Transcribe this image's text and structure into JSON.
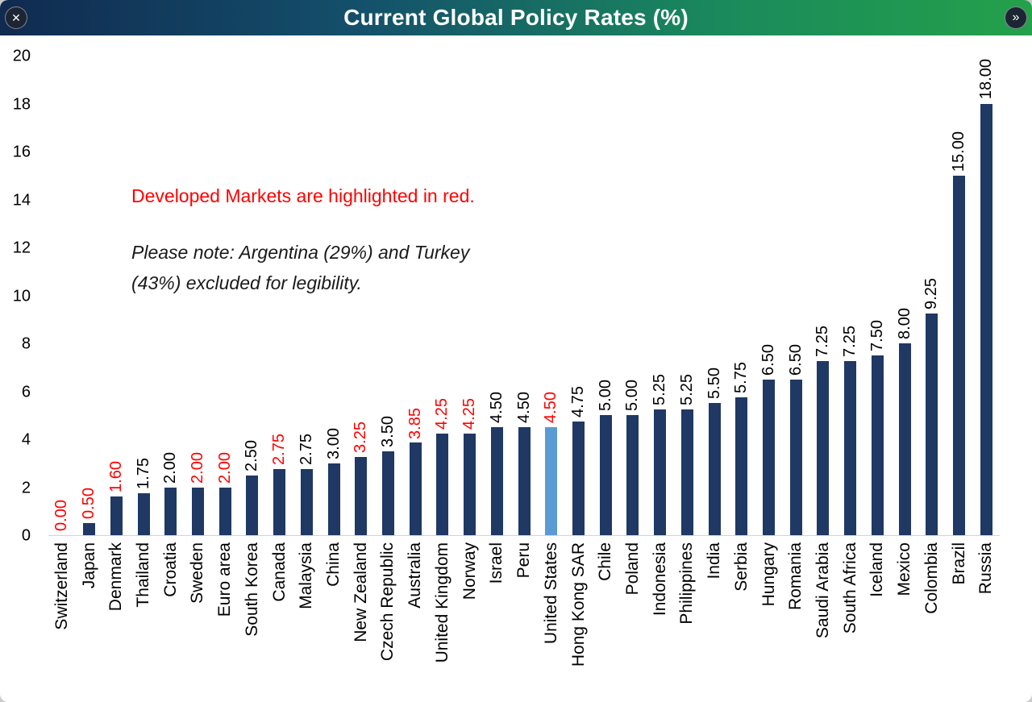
{
  "header": {
    "title": "Current Global Policy Rates (%)",
    "close_icon": "✕",
    "next_icon": "»"
  },
  "annotations": {
    "developed_note": "Developed Markets are highlighted in red.",
    "exclusion_note_line1": "Please note: Argentina (29%) and Turkey",
    "exclusion_note_line2": "(43%) excluded for legibility."
  },
  "chart_data": {
    "type": "bar",
    "title": "Current Global Policy Rates (%)",
    "xlabel": "",
    "ylabel": "",
    "ylim": [
      0,
      20
    ],
    "ytick_step": 2,
    "grid": false,
    "legend": "none",
    "bar_color": "#1F3864",
    "highlight_color": "#5B9BD5",
    "developed_label_color": "#FF0000",
    "default_label_color": "#000000",
    "bars": [
      {
        "country": "Switzerland",
        "rate": 0.0,
        "label": "0.00",
        "developed": true,
        "highlight": false
      },
      {
        "country": "Japan",
        "rate": 0.5,
        "label": "0.50",
        "developed": true,
        "highlight": false
      },
      {
        "country": "Denmark",
        "rate": 1.6,
        "label": "1.60",
        "developed": true,
        "highlight": false
      },
      {
        "country": "Thailand",
        "rate": 1.75,
        "label": "1.75",
        "developed": false,
        "highlight": false
      },
      {
        "country": "Croatia",
        "rate": 2.0,
        "label": "2.00",
        "developed": false,
        "highlight": false
      },
      {
        "country": "Sweden",
        "rate": 2.0,
        "label": "2.00",
        "developed": true,
        "highlight": false
      },
      {
        "country": "Euro area",
        "rate": 2.0,
        "label": "2.00",
        "developed": true,
        "highlight": false
      },
      {
        "country": "South Korea",
        "rate": 2.5,
        "label": "2.50",
        "developed": false,
        "highlight": false
      },
      {
        "country": "Canada",
        "rate": 2.75,
        "label": "2.75",
        "developed": true,
        "highlight": false
      },
      {
        "country": "Malaysia",
        "rate": 2.75,
        "label": "2.75",
        "developed": false,
        "highlight": false
      },
      {
        "country": "China",
        "rate": 3.0,
        "label": "3.00",
        "developed": false,
        "highlight": false
      },
      {
        "country": "New Zealand",
        "rate": 3.25,
        "label": "3.25",
        "developed": true,
        "highlight": false
      },
      {
        "country": "Czech Republic",
        "rate": 3.5,
        "label": "3.50",
        "developed": false,
        "highlight": false
      },
      {
        "country": "Australia",
        "rate": 3.85,
        "label": "3.85",
        "developed": true,
        "highlight": false
      },
      {
        "country": "United Kingdom",
        "rate": 4.25,
        "label": "4.25",
        "developed": true,
        "highlight": false
      },
      {
        "country": "Norway",
        "rate": 4.25,
        "label": "4.25",
        "developed": true,
        "highlight": false
      },
      {
        "country": "Israel",
        "rate": 4.5,
        "label": "4.50",
        "developed": false,
        "highlight": false
      },
      {
        "country": "Peru",
        "rate": 4.5,
        "label": "4.50",
        "developed": false,
        "highlight": false
      },
      {
        "country": "United States",
        "rate": 4.5,
        "label": "4.50",
        "developed": true,
        "highlight": true
      },
      {
        "country": "Hong Kong SAR",
        "rate": 4.75,
        "label": "4.75",
        "developed": false,
        "highlight": false
      },
      {
        "country": "Chile",
        "rate": 5.0,
        "label": "5.00",
        "developed": false,
        "highlight": false
      },
      {
        "country": "Poland",
        "rate": 5.0,
        "label": "5.00",
        "developed": false,
        "highlight": false
      },
      {
        "country": "Indonesia",
        "rate": 5.25,
        "label": "5.25",
        "developed": false,
        "highlight": false
      },
      {
        "country": "Philippines",
        "rate": 5.25,
        "label": "5.25",
        "developed": false,
        "highlight": false
      },
      {
        "country": "India",
        "rate": 5.5,
        "label": "5.50",
        "developed": false,
        "highlight": false
      },
      {
        "country": "Serbia",
        "rate": 5.75,
        "label": "5.75",
        "developed": false,
        "highlight": false
      },
      {
        "country": "Hungary",
        "rate": 6.5,
        "label": "6.50",
        "developed": false,
        "highlight": false
      },
      {
        "country": "Romania",
        "rate": 6.5,
        "label": "6.50",
        "developed": false,
        "highlight": false
      },
      {
        "country": "Saudi Arabia",
        "rate": 7.25,
        "label": "7.25",
        "developed": false,
        "highlight": false
      },
      {
        "country": "South Africa",
        "rate": 7.25,
        "label": "7.25",
        "developed": false,
        "highlight": false
      },
      {
        "country": "Iceland",
        "rate": 7.5,
        "label": "7.50",
        "developed": false,
        "highlight": false
      },
      {
        "country": "Mexico",
        "rate": 8.0,
        "label": "8.00",
        "developed": false,
        "highlight": false
      },
      {
        "country": "Colombia",
        "rate": 9.25,
        "label": "9.25",
        "developed": false,
        "highlight": false
      },
      {
        "country": "Brazil",
        "rate": 15.0,
        "label": "15.00",
        "developed": false,
        "highlight": false
      },
      {
        "country": "Russia",
        "rate": 18.0,
        "label": "18.00",
        "developed": false,
        "highlight": false
      }
    ]
  }
}
